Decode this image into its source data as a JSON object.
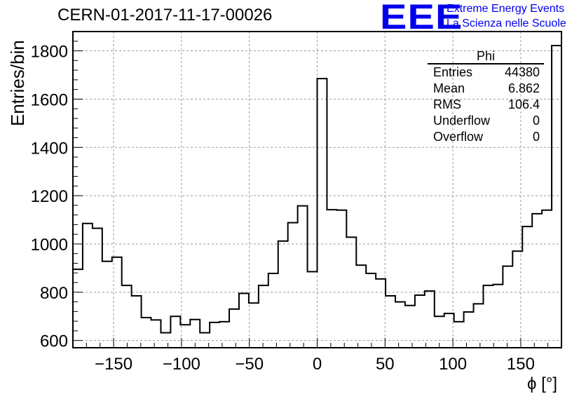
{
  "header": {
    "title": "CERN-01-2017-11-17-00026",
    "logo_text": "EEE",
    "org_line1": "Extreme Energy Events",
    "org_line2": "La Scienza nelle Scuole",
    "brand_color": "#0000ee"
  },
  "stats": {
    "title": "Phi",
    "rows": [
      {
        "label": "Entries",
        "value": "44380"
      },
      {
        "label": "Mean",
        "value": "6.862"
      },
      {
        "label": "RMS",
        "value": "106.4"
      },
      {
        "label": "Underflow",
        "value": "0"
      },
      {
        "label": "Overflow",
        "value": "0"
      }
    ]
  },
  "chart_data": {
    "type": "bar",
    "style": "step-histogram",
    "title": "CERN-01-2017-11-17-00026",
    "xlabel": "ϕ [°]",
    "ylabel": "Entries/bin",
    "xlim": [
      -180,
      180
    ],
    "ylim": [
      570,
      1880
    ],
    "bin_width": 7.2,
    "x_ticks": [
      -150,
      -100,
      -50,
      0,
      50,
      100,
      150
    ],
    "x_tick_labels": [
      "−150",
      "−100",
      "−50",
      "0",
      "50",
      "100",
      "150"
    ],
    "y_ticks": [
      600,
      800,
      1000,
      1200,
      1400,
      1600,
      1800
    ],
    "y_tick_labels": [
      "600",
      "800",
      "1000",
      "1200",
      "1400",
      "1600",
      "1800"
    ],
    "grid": true,
    "values": [
      895,
      1085,
      1065,
      928,
      945,
      828,
      785,
      695,
      685,
      632,
      700,
      665,
      687,
      632,
      675,
      678,
      730,
      795,
      755,
      828,
      878,
      1012,
      1088,
      1158,
      885,
      1685,
      1142,
      1140,
      1028,
      912,
      878,
      855,
      785,
      760,
      745,
      788,
      805,
      700,
      712,
      678,
      718,
      752,
      828,
      832,
      908,
      970,
      1072,
      1125,
      1140,
      1822
    ]
  }
}
